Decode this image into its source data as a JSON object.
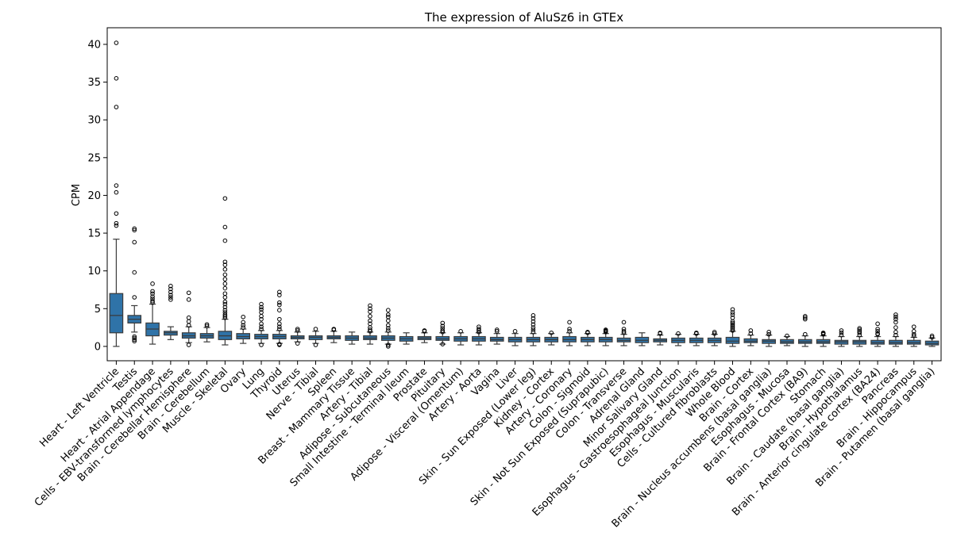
{
  "chart_data": {
    "type": "box",
    "title": "The expression of AluSz6 in GTEx",
    "xlabel": "",
    "ylabel": "CPM",
    "ylim": [
      -1.9,
      42.2
    ],
    "yticks": [
      0,
      5,
      10,
      15,
      20,
      25,
      30,
      35,
      40
    ],
    "box_color": "#2f73a8",
    "grid": false,
    "categories": [
      "Heart - Left Ventricle",
      "Testis",
      "Heart - Atrial Appendage",
      "Cells - EBV-transformed lymphocytes",
      "Brain - Cerebellar Hemisphere",
      "Brain - Cerebellum",
      "Muscle - Skeletal",
      "Ovary",
      "Lung",
      "Thyroid",
      "Uterus",
      "Nerve - Tibial",
      "Spleen",
      "Breast - Mammary Tissue",
      "Artery - Tibial",
      "Adipose - Subcutaneous",
      "Small Intestine - Terminal Ileum",
      "Prostate",
      "Pituitary",
      "Adipose - Visceral (Omentum)",
      "Artery - Aorta",
      "Vagina",
      "Liver",
      "Skin - Sun Exposed (Lower leg)",
      "Kidney - Cortex",
      "Artery - Coronary",
      "Colon - Sigmoid",
      "Skin - Not Sun Exposed (Suprapubic)",
      "Colon - Transverse",
      "Adrenal Gland",
      "Minor Salivary Gland",
      "Esophagus - Gastroesophageal Junction",
      "Esophagus - Muscularis",
      "Cells - Cultured fibroblasts",
      "Whole Blood",
      "Brain - Cortex",
      "Brain - Nucleus accumbens (basal ganglia)",
      "Esophagus - Mucosa",
      "Brain - Frontal Cortex (BA9)",
      "Stomach",
      "Brain - Caudate (basal ganglia)",
      "Brain - Hypothalamus",
      "Brain - Anterior cingulate cortex (BA24)",
      "Pancreas",
      "Brain - Hippocampus",
      "Brain - Putamen (basal ganglia)"
    ],
    "boxes": [
      {
        "q1": 1.8,
        "median": 4.1,
        "q3": 7.0,
        "whislo": 0.0,
        "whishi": 14.2,
        "fliers": [
          16.0,
          16.3,
          17.6,
          20.4,
          21.3,
          31.7,
          35.5,
          40.2
        ]
      },
      {
        "q1": 3.1,
        "median": 3.6,
        "q3": 4.1,
        "whislo": 1.9,
        "whishi": 5.4,
        "fliers": [
          0.7,
          0.9,
          1.1,
          1.3,
          6.5,
          9.8,
          13.8,
          15.4,
          15.6
        ]
      },
      {
        "q1": 1.4,
        "median": 2.3,
        "q3": 3.1,
        "whislo": 0.3,
        "whishi": 5.6,
        "fliers": [
          5.8,
          6.0,
          6.3,
          6.6,
          7.0,
          7.3,
          8.3
        ]
      },
      {
        "q1": 1.5,
        "median": 1.8,
        "q3": 2.0,
        "whislo": 0.9,
        "whishi": 2.6,
        "fliers": [
          6.2,
          6.5,
          6.8,
          7.2,
          7.6,
          8.0
        ]
      },
      {
        "q1": 1.1,
        "median": 1.4,
        "q3": 1.8,
        "whislo": 0.5,
        "whishi": 2.6,
        "fliers": [
          0.2,
          2.8,
          3.3,
          3.8,
          6.2,
          7.1
        ]
      },
      {
        "q1": 1.1,
        "median": 1.4,
        "q3": 1.7,
        "whislo": 0.6,
        "whishi": 2.5,
        "fliers": [
          2.7,
          2.9
        ]
      },
      {
        "q1": 0.9,
        "median": 1.4,
        "q3": 2.0,
        "whislo": 0.2,
        "whishi": 3.6,
        "fliers": [
          3.8,
          4.0,
          4.2,
          4.5,
          4.8,
          5.2,
          5.6,
          5.9,
          6.5,
          7.0,
          7.7,
          8.3,
          8.9,
          9.5,
          10.2,
          10.8,
          11.2,
          14.0,
          15.8,
          19.6
        ]
      },
      {
        "q1": 1.0,
        "median": 1.3,
        "q3": 1.7,
        "whislo": 0.4,
        "whishi": 2.3,
        "fliers": [
          2.5,
          2.8,
          3.2,
          3.9
        ]
      },
      {
        "q1": 1.0,
        "median": 1.3,
        "q3": 1.6,
        "whislo": 0.4,
        "whishi": 2.1,
        "fliers": [
          0.2,
          2.3,
          2.6,
          3.0,
          3.6,
          4.0,
          4.5,
          4.9,
          5.2,
          5.6
        ]
      },
      {
        "q1": 1.0,
        "median": 1.3,
        "q3": 1.6,
        "whislo": 0.4,
        "whishi": 2.1,
        "fliers": [
          0.2,
          0.3,
          2.3,
          2.6,
          3.0,
          3.6,
          4.8,
          5.5,
          5.8,
          6.8,
          7.2
        ]
      },
      {
        "q1": 1.0,
        "median": 1.2,
        "q3": 1.4,
        "whislo": 0.6,
        "whishi": 1.9,
        "fliers": [
          0.4,
          2.1,
          2.3
        ]
      },
      {
        "q1": 0.9,
        "median": 1.2,
        "q3": 1.4,
        "whislo": 0.4,
        "whishi": 2.0,
        "fliers": [
          0.2,
          2.3
        ]
      },
      {
        "q1": 1.0,
        "median": 1.2,
        "q3": 1.4,
        "whislo": 0.5,
        "whishi": 2.0,
        "fliers": [
          2.2,
          2.3
        ]
      },
      {
        "q1": 0.8,
        "median": 1.1,
        "q3": 1.4,
        "whislo": 0.3,
        "whishi": 1.9,
        "fliers": []
      },
      {
        "q1": 0.9,
        "median": 1.1,
        "q3": 1.4,
        "whislo": 0.3,
        "whishi": 1.9,
        "fliers": [
          2.0,
          2.2,
          2.5,
          3.0,
          3.4,
          4.0,
          4.6,
          5.0,
          5.4
        ]
      },
      {
        "q1": 0.8,
        "median": 1.1,
        "q3": 1.4,
        "whislo": 0.3,
        "whishi": 1.9,
        "fliers": [
          0.0,
          0.2,
          2.1,
          2.4,
          2.8,
          3.4,
          3.9,
          4.2,
          4.8
        ]
      },
      {
        "q1": 0.7,
        "median": 1.0,
        "q3": 1.3,
        "whislo": 0.3,
        "whishi": 1.8,
        "fliers": []
      },
      {
        "q1": 0.9,
        "median": 1.1,
        "q3": 1.3,
        "whislo": 0.5,
        "whishi": 1.8,
        "fliers": [
          2.0,
          2.1
        ]
      },
      {
        "q1": 0.8,
        "median": 1.0,
        "q3": 1.3,
        "whislo": 0.3,
        "whishi": 1.8,
        "fliers": [
          0.3,
          1.9,
          2.1,
          2.4,
          2.7,
          3.1
        ]
      },
      {
        "q1": 0.7,
        "median": 1.0,
        "q3": 1.3,
        "whislo": 0.2,
        "whishi": 1.8,
        "fliers": [
          2.0
        ]
      },
      {
        "q1": 0.7,
        "median": 1.0,
        "q3": 1.3,
        "whislo": 0.2,
        "whishi": 1.8,
        "fliers": [
          1.9,
          2.1,
          2.3,
          2.6
        ]
      },
      {
        "q1": 0.7,
        "median": 0.9,
        "q3": 1.2,
        "whislo": 0.3,
        "whishi": 1.7,
        "fliers": [
          2.0,
          2.2
        ]
      },
      {
        "q1": 0.6,
        "median": 0.9,
        "q3": 1.2,
        "whislo": 0.1,
        "whishi": 1.7,
        "fliers": [
          2.0
        ]
      },
      {
        "q1": 0.6,
        "median": 0.9,
        "q3": 1.2,
        "whislo": 0.1,
        "whishi": 1.7,
        "fliers": [
          1.9,
          2.2,
          2.5,
          2.9,
          3.3,
          3.7,
          4.1
        ]
      },
      {
        "q1": 0.6,
        "median": 0.9,
        "q3": 1.2,
        "whislo": 0.2,
        "whishi": 1.7,
        "fliers": [
          1.8
        ]
      },
      {
        "q1": 0.6,
        "median": 0.9,
        "q3": 1.3,
        "whislo": 0.1,
        "whishi": 1.8,
        "fliers": [
          2.0,
          2.3,
          3.2
        ]
      },
      {
        "q1": 0.6,
        "median": 0.9,
        "q3": 1.2,
        "whislo": 0.1,
        "whishi": 1.7,
        "fliers": [
          1.8,
          1.9
        ]
      },
      {
        "q1": 0.6,
        "median": 0.9,
        "q3": 1.2,
        "whislo": 0.1,
        "whishi": 1.7,
        "fliers": [
          1.9,
          2.0,
          2.1,
          2.2
        ]
      },
      {
        "q1": 0.6,
        "median": 0.8,
        "q3": 1.1,
        "whislo": 0.1,
        "whishi": 1.6,
        "fliers": [
          1.8,
          2.0,
          2.3,
          3.2
        ]
      },
      {
        "q1": 0.5,
        "median": 0.8,
        "q3": 1.2,
        "whislo": 0.1,
        "whishi": 1.8,
        "fliers": []
      },
      {
        "q1": 0.6,
        "median": 0.8,
        "q3": 1.0,
        "whislo": 0.2,
        "whishi": 1.5,
        "fliers": [
          1.7,
          1.8
        ]
      },
      {
        "q1": 0.5,
        "median": 0.8,
        "q3": 1.1,
        "whislo": 0.1,
        "whishi": 1.6,
        "fliers": [
          1.7
        ]
      },
      {
        "q1": 0.5,
        "median": 0.8,
        "q3": 1.1,
        "whislo": 0.1,
        "whishi": 1.6,
        "fliers": [
          1.7,
          1.8
        ]
      },
      {
        "q1": 0.5,
        "median": 0.8,
        "q3": 1.1,
        "whislo": 0.1,
        "whishi": 1.6,
        "fliers": [
          1.7,
          1.9
        ]
      },
      {
        "q1": 0.4,
        "median": 0.7,
        "q3": 1.2,
        "whislo": 0.0,
        "whishi": 2.0,
        "fliers": [
          2.1,
          2.3,
          2.5,
          2.7,
          2.9,
          3.1,
          3.3,
          3.8,
          4.2,
          4.5,
          4.9
        ]
      },
      {
        "q1": 0.5,
        "median": 0.7,
        "q3": 1.0,
        "whislo": 0.1,
        "whishi": 1.5,
        "fliers": [
          1.7,
          2.1
        ]
      },
      {
        "q1": 0.4,
        "median": 0.7,
        "q3": 0.9,
        "whislo": 0.0,
        "whishi": 1.5,
        "fliers": [
          1.6,
          1.9
        ]
      },
      {
        "q1": 0.4,
        "median": 0.6,
        "q3": 0.9,
        "whislo": 0.1,
        "whishi": 1.3,
        "fliers": [
          1.4
        ]
      },
      {
        "q1": 0.4,
        "median": 0.6,
        "q3": 0.9,
        "whislo": 0.0,
        "whishi": 1.4,
        "fliers": [
          1.6,
          3.6,
          3.8,
          4.0
        ]
      },
      {
        "q1": 0.4,
        "median": 0.6,
        "q3": 0.9,
        "whislo": 0.0,
        "whishi": 1.4,
        "fliers": [
          1.6,
          1.7,
          1.8
        ]
      },
      {
        "q1": 0.3,
        "median": 0.6,
        "q3": 0.8,
        "whislo": 0.0,
        "whishi": 1.3,
        "fliers": [
          1.5,
          1.8,
          2.1
        ]
      },
      {
        "q1": 0.3,
        "median": 0.6,
        "q3": 0.8,
        "whislo": 0.0,
        "whishi": 1.3,
        "fliers": [
          1.5,
          1.8,
          2.0,
          2.2,
          2.4
        ]
      },
      {
        "q1": 0.3,
        "median": 0.5,
        "q3": 0.8,
        "whislo": 0.0,
        "whishi": 1.3,
        "fliers": [
          1.6,
          1.7,
          2.0,
          2.3,
          3.0
        ]
      },
      {
        "q1": 0.3,
        "median": 0.5,
        "q3": 0.8,
        "whislo": 0.0,
        "whishi": 1.3,
        "fliers": [
          1.5,
          1.9,
          2.5,
          3.2,
          3.6,
          3.9,
          4.2
        ]
      },
      {
        "q1": 0.3,
        "median": 0.5,
        "q3": 0.8,
        "whislo": 0.0,
        "whishi": 1.2,
        "fliers": [
          1.4,
          1.6,
          2.0,
          2.6
        ]
      },
      {
        "q1": 0.2,
        "median": 0.4,
        "q3": 0.7,
        "whislo": 0.0,
        "whishi": 1.1,
        "fliers": [
          1.2,
          1.4
        ]
      }
    ]
  }
}
